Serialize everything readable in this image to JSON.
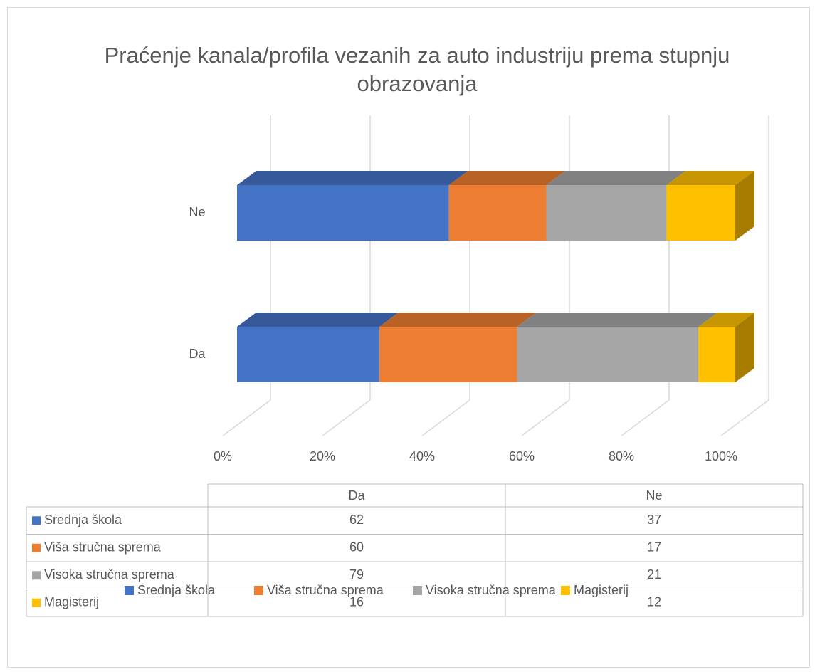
{
  "chart_data": {
    "type": "bar",
    "orientation": "horizontal",
    "stacking": "percent",
    "three_d": true,
    "title": "Praćenje kanala/profila vezanih za auto industriju prema stupnju obrazovanja",
    "categories": [
      "Da",
      "Ne"
    ],
    "series": [
      {
        "name": "Srednja škola",
        "color": "#4472c4",
        "values": [
          62,
          37
        ]
      },
      {
        "name": "Viša stručna sprema",
        "color": "#ed7d31",
        "values": [
          60,
          17
        ]
      },
      {
        "name": "Visoka stručna sprema",
        "color": "#a5a5a5",
        "values": [
          79,
          21
        ]
      },
      {
        "name": "Magisterij",
        "color": "#ffc000",
        "values": [
          16,
          12
        ]
      }
    ],
    "xlim": [
      0,
      100
    ],
    "xticks": [
      {
        "value": 0,
        "label": "0%"
      },
      {
        "value": 20,
        "label": "20%"
      },
      {
        "value": 40,
        "label": "40%"
      },
      {
        "value": 60,
        "label": "60%"
      },
      {
        "value": 80,
        "label": "80%"
      },
      {
        "value": 100,
        "label": "100%"
      }
    ],
    "grid": true,
    "data_table": true,
    "legend": "bottom"
  }
}
